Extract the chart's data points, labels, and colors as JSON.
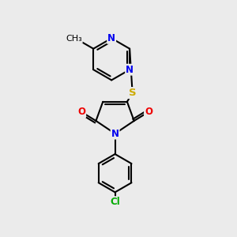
{
  "background_color": "#ebebeb",
  "bond_color": "#000000",
  "bond_width": 1.5,
  "atom_colors": {
    "N": "#0000ee",
    "O": "#ee0000",
    "S": "#ccaa00",
    "Cl": "#00aa00",
    "C": "#000000"
  },
  "font_size": 8.5,
  "figsize": [
    3.0,
    3.0
  ],
  "dpi": 100
}
